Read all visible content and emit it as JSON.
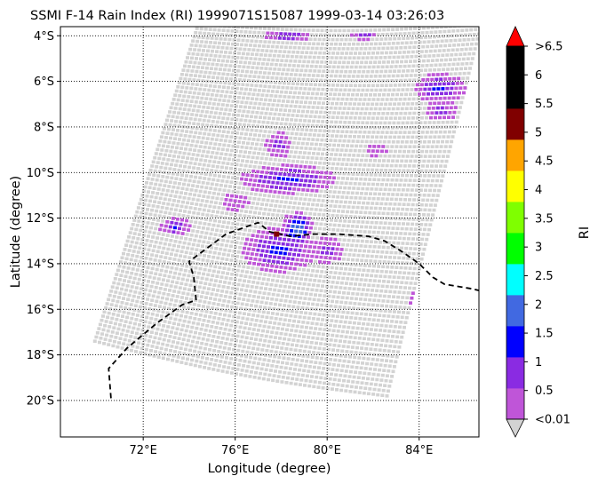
{
  "chart_data": {
    "type": "heatmap",
    "title": "SSMI F-14 Rain Index (RI) 1999071S15087 1999-03-14 03:26:03",
    "xlabel": "Longitude (degree)",
    "ylabel": "Latitude (degree)",
    "x_ticks": [
      {
        "value": 72,
        "label": "72°E"
      },
      {
        "value": 76,
        "label": "76°E"
      },
      {
        "value": 80,
        "label": "80°E"
      },
      {
        "value": 84,
        "label": "84°E"
      }
    ],
    "y_ticks": [
      {
        "value": -4,
        "label": "4°S"
      },
      {
        "value": -6,
        "label": "6°S"
      },
      {
        "value": -8,
        "label": "8°S"
      },
      {
        "value": -10,
        "label": "10°S"
      },
      {
        "value": -12,
        "label": "12°S"
      },
      {
        "value": -14,
        "label": "14°S"
      },
      {
        "value": -16,
        "label": "16°S"
      },
      {
        "value": -18,
        "label": "18°S"
      },
      {
        "value": -20,
        "label": "20°S"
      }
    ],
    "xlim": [
      68.4,
      86.6
    ],
    "ylim": [
      -21.6,
      -3.6
    ],
    "grid": true,
    "colorbar": {
      "label": "RI",
      "tick_labels": [
        "<0.01",
        "0.5",
        "1",
        "1.5",
        "2",
        "2.5",
        "3",
        "3.5",
        "4",
        "4.5",
        "5",
        "5.5",
        "6",
        ">6.5"
      ],
      "colors": [
        "#bf55d8",
        "#8a2be2",
        "#0000ff",
        "#4169e1",
        "#00ffff",
        "#00ff00",
        "#7fff00",
        "#ffff00",
        "#ffa500",
        "#800000",
        "#000000",
        "#000000"
      ],
      "under_color": "#d3d3d3",
      "over_color": "#ff0000"
    },
    "swath": {
      "no_rain_color": "#d3d3d3",
      "corners_lon_lat": [
        [
          74.4,
          -3.5
        ],
        [
          86.7,
          -3.5
        ],
        [
          82.6,
          -19.8
        ],
        [
          69.9,
          -17.4
        ]
      ]
    },
    "rain_cells": [
      {
        "lon": 78.3,
        "lat": -10.3,
        "rx": 2.1,
        "ry": 0.65,
        "peak": 1.3
      },
      {
        "lon": 77.9,
        "lat": -8.8,
        "rx": 0.6,
        "ry": 0.6,
        "peak": 0.8
      },
      {
        "lon": 77.9,
        "lat": -13.4,
        "rx": 1.6,
        "ry": 1.0,
        "peak": 1.3
      },
      {
        "lon": 78.7,
        "lat": -12.5,
        "rx": 0.7,
        "ry": 0.8,
        "peak": 2.2
      },
      {
        "lon": 80.0,
        "lat": -13.4,
        "rx": 0.7,
        "ry": 0.6,
        "peak": 0.8
      },
      {
        "lon": 84.4,
        "lat": -15.6,
        "rx": 0.9,
        "ry": 0.55,
        "peak": 1.6
      },
      {
        "lon": 84.9,
        "lat": -6.3,
        "rx": 1.1,
        "ry": 0.65,
        "peak": 1.3
      },
      {
        "lon": 85.0,
        "lat": -7.3,
        "rx": 0.7,
        "ry": 0.5,
        "peak": 0.8
      },
      {
        "lon": 78.3,
        "lat": -4.0,
        "rx": 1.0,
        "ry": 0.25,
        "peak": 1.2
      },
      {
        "lon": 81.6,
        "lat": -4.0,
        "rx": 0.6,
        "ry": 0.2,
        "peak": 0.9
      },
      {
        "lon": 73.4,
        "lat": -12.4,
        "rx": 0.7,
        "ry": 0.4,
        "peak": 1.1
      },
      {
        "lon": 82.1,
        "lat": -9.0,
        "rx": 0.5,
        "ry": 0.3,
        "peak": 0.6
      },
      {
        "lon": 76.0,
        "lat": -11.3,
        "rx": 0.6,
        "ry": 0.4,
        "peak": 0.5
      }
    ],
    "storm_track_lon_lat": [
      [
        70.6,
        -19.9
      ],
      [
        70.5,
        -18.6
      ],
      [
        71.3,
        -17.7
      ],
      [
        72.6,
        -16.6
      ],
      [
        73.7,
        -15.8
      ],
      [
        74.3,
        -15.6
      ],
      [
        74.2,
        -14.6
      ],
      [
        74.0,
        -13.9
      ],
      [
        74.8,
        -13.3
      ],
      [
        75.6,
        -12.7
      ],
      [
        76.7,
        -12.3
      ],
      [
        77.0,
        -12.2
      ],
      [
        77.5,
        -12.6
      ],
      [
        78.4,
        -12.8
      ],
      [
        79.4,
        -12.7
      ],
      [
        80.5,
        -12.7
      ],
      [
        81.8,
        -12.8
      ],
      [
        82.5,
        -13.0
      ],
      [
        83.3,
        -13.5
      ],
      [
        84.0,
        -14.0
      ],
      [
        84.6,
        -14.6
      ],
      [
        85.1,
        -14.9
      ],
      [
        85.7,
        -15.0
      ],
      [
        86.3,
        -15.1
      ],
      [
        86.7,
        -15.2
      ]
    ],
    "storm_center_lon_lat": [
      77.8,
      -12.7
    ],
    "storm_center_color": "#800000"
  }
}
